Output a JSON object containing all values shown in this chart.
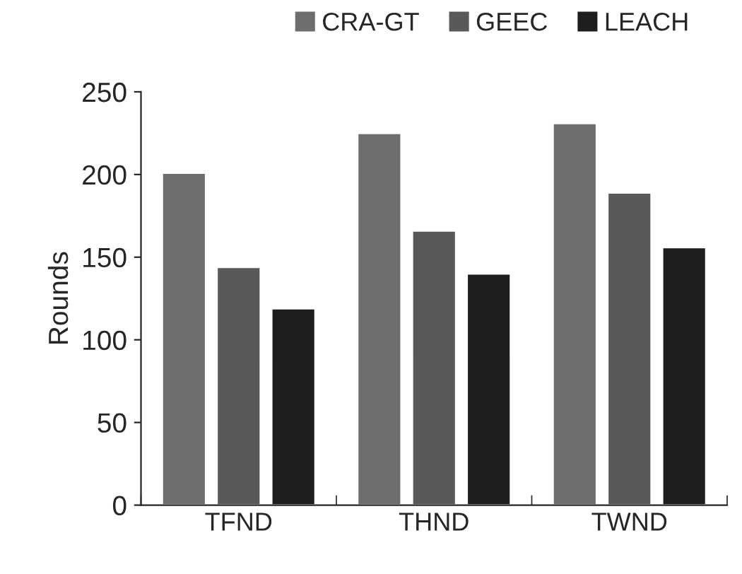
{
  "chart_data": {
    "type": "bar",
    "ylabel": "Rounds",
    "categories": [
      "TFND",
      "THND",
      "TWND"
    ],
    "series": [
      {
        "name": "CRA-GT",
        "color": "#6e6e6e",
        "values": [
          201,
          225,
          231
        ]
      },
      {
        "name": "GEEC",
        "color": "#595959",
        "values": [
          144,
          166,
          189
        ]
      },
      {
        "name": "LEACH",
        "color": "#1e1e1e",
        "values": [
          119,
          140,
          156
        ]
      }
    ],
    "ylim": [
      0,
      250
    ],
    "yticks": [
      0,
      50,
      100,
      150,
      200,
      250
    ],
    "grid": false,
    "legend": "top"
  }
}
